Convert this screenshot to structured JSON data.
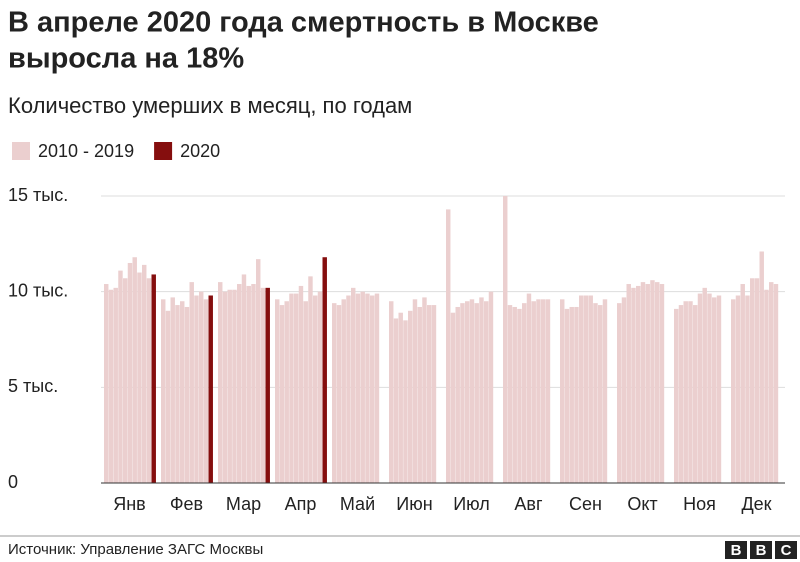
{
  "chart_data": {
    "type": "bar",
    "title": [
      "В апреле 2020 года смертность в Москве",
      "выросла на 18%"
    ],
    "subtitle": "Количество умерших в месяц, по годам",
    "categories": [
      "Янв",
      "Фев",
      "Мар",
      "Апр",
      "Май",
      "Июн",
      "Июл",
      "Авг",
      "Сен",
      "Окт",
      "Ноя",
      "Дек"
    ],
    "series": [
      {
        "name": "2010 - 2019",
        "color": "#ebcfcf",
        "values": [
          [
            10.4,
            10.1,
            10.2,
            11.1,
            10.7,
            11.5,
            11.8,
            11.0,
            11.4,
            10.7
          ],
          [
            9.6,
            9.0,
            9.7,
            9.3,
            9.5,
            9.2,
            10.5,
            9.8,
            10.0,
            9.6
          ],
          [
            10.5,
            10.0,
            10.1,
            10.1,
            10.4,
            10.9,
            10.3,
            10.4,
            11.7,
            10.2
          ],
          [
            9.6,
            9.3,
            9.5,
            9.9,
            9.9,
            10.3,
            9.5,
            10.8,
            9.8,
            10.0
          ],
          [
            9.4,
            9.3,
            9.6,
            9.8,
            10.2,
            9.9,
            10.0,
            9.9,
            9.8,
            9.9
          ],
          [
            9.5,
            8.6,
            8.9,
            8.5,
            9.0,
            9.6,
            9.2,
            9.7,
            9.3,
            9.3
          ],
          [
            14.3,
            8.9,
            9.2,
            9.4,
            9.5,
            9.6,
            9.4,
            9.7,
            9.5,
            10.0
          ],
          [
            15.0,
            9.3,
            9.2,
            9.1,
            9.4,
            9.9,
            9.5,
            9.6,
            9.6,
            9.6
          ],
          [
            9.6,
            9.1,
            9.2,
            9.2,
            9.8,
            9.8,
            9.8,
            9.4,
            9.3,
            9.6
          ],
          [
            9.4,
            9.7,
            10.4,
            10.2,
            10.3,
            10.5,
            10.4,
            10.6,
            10.5,
            10.4
          ],
          [
            9.1,
            9.3,
            9.5,
            9.5,
            9.3,
            9.9,
            10.2,
            9.9,
            9.7,
            9.8
          ],
          [
            9.6,
            9.8,
            10.4,
            9.8,
            10.7,
            10.7,
            12.1,
            10.1,
            10.5,
            10.4
          ]
        ]
      },
      {
        "name": "2020",
        "color": "#850e0e",
        "values": [
          10.9,
          9.8,
          10.2,
          11.8,
          null,
          null,
          null,
          null,
          null,
          null,
          null,
          null
        ]
      }
    ],
    "ylim": [
      0,
      15
    ],
    "yticks": [
      0,
      {
        "value": 5,
        "label": "5 тыс."
      },
      {
        "value": 10,
        "label": "10 тыс."
      },
      {
        "value": 15,
        "label": "15 тыс."
      }
    ],
    "grid": true,
    "legend": "top-left",
    "source": "Источник: Управление ЗАГС Москвы",
    "logo": [
      "B",
      "B",
      "C"
    ]
  }
}
